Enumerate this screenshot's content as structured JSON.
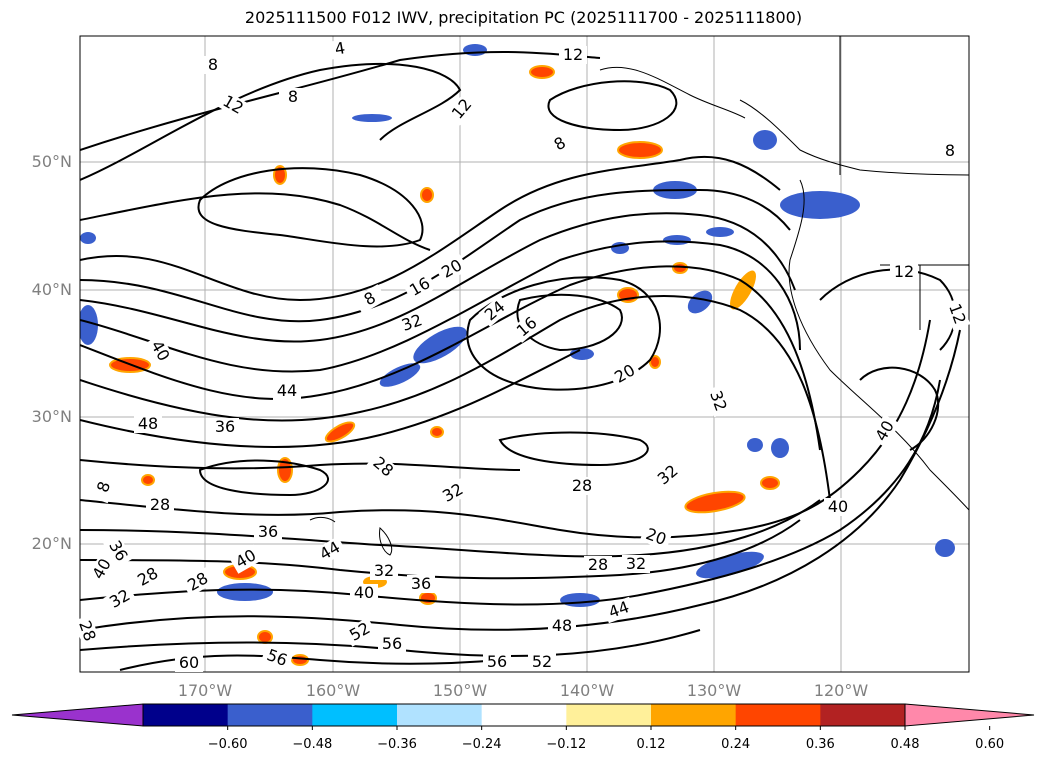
{
  "title": "2025111500 F012 IWV, precipitation PC (2025111700 - 2025111800)",
  "lat_labels": [
    "50°N",
    "40°N",
    "30°N",
    "20°N"
  ],
  "lon_labels": [
    "170°W",
    "160°W",
    "150°W",
    "140°W",
    "130°W",
    "120°W"
  ],
  "contour_labels": [
    "4",
    "8",
    "12",
    "12",
    "8",
    "8",
    "12",
    "16",
    "20",
    "24",
    "16",
    "32",
    "8",
    "40",
    "44",
    "48",
    "36",
    "20",
    "32",
    "28",
    "32",
    "28",
    "36",
    "40",
    "44",
    "32",
    "28",
    "36",
    "40",
    "52",
    "56",
    "56",
    "60",
    "56",
    "52",
    "48",
    "44",
    "28",
    "32",
    "20",
    "40",
    "40",
    "12",
    "12",
    "8",
    "32",
    "28",
    "28",
    "8",
    "36",
    "40",
    "32",
    "28"
  ],
  "colorbar": {
    "ticks": [
      "−0.60",
      "−0.48",
      "−0.36",
      "−0.24",
      "−0.12",
      "0.12",
      "0.24",
      "0.36",
      "0.48",
      "0.60"
    ],
    "colors": [
      "#9a32cd",
      "#00008b",
      "#3a5fcd",
      "#00bfff",
      "#b0e2ff",
      "#ffffff",
      "#fff09a",
      "#ffa500",
      "#ff4500",
      "#b22222",
      "#ff88aa"
    ]
  }
}
